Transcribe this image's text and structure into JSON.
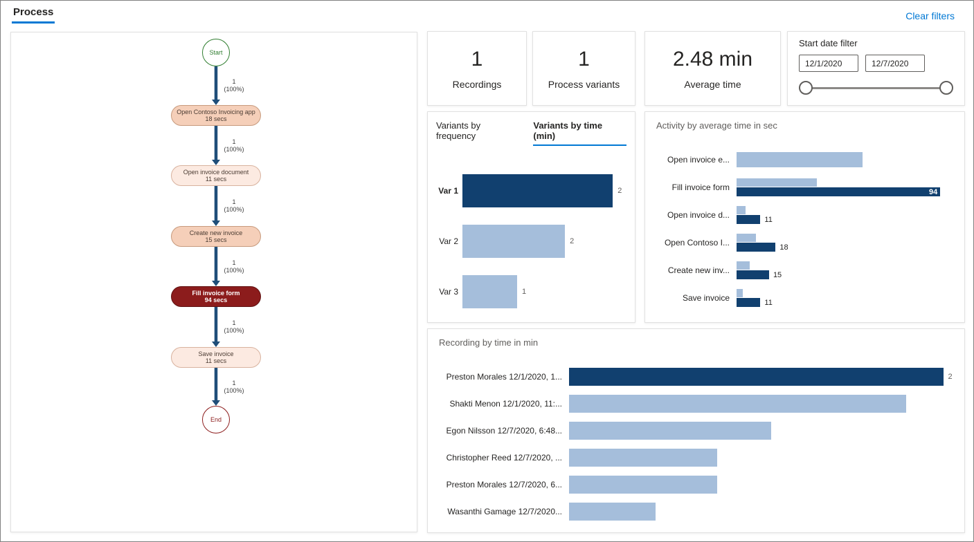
{
  "header": {
    "process_tab": "Process",
    "clear_filters": "Clear filters"
  },
  "colors": {
    "accent": "#0078d4",
    "dark_bar": "#11406f",
    "light_bar": "#a5bedb",
    "arrow": "#1f4e79",
    "node_high": "#8c1c1c",
    "node_mid": "#f5cfb9",
    "node_low": "#fceae1",
    "start_green": "#2f7d2f",
    "end_red": "#8c1c1c"
  },
  "flow": {
    "start": "Start",
    "end": "End",
    "edges": [
      {
        "count": "1",
        "pct": "(100%)"
      },
      {
        "count": "1",
        "pct": "(100%)"
      },
      {
        "count": "1",
        "pct": "(100%)"
      },
      {
        "count": "1",
        "pct": "(100%)"
      },
      {
        "count": "1",
        "pct": "(100%)"
      },
      {
        "count": "1",
        "pct": "(100%)"
      }
    ],
    "nodes": [
      {
        "title": "Open Contoso Invoicing app",
        "duration": "18 secs",
        "heat": "mid"
      },
      {
        "title": "Open invoice document",
        "duration": "11 secs",
        "heat": "low"
      },
      {
        "title": "Create new invoice",
        "duration": "15 secs",
        "heat": "mid"
      },
      {
        "title": "Fill invoice form",
        "duration": "94 secs",
        "heat": "high"
      },
      {
        "title": "Save invoice",
        "duration": "11 secs",
        "heat": "low"
      }
    ]
  },
  "kpis": [
    {
      "value": "1",
      "label": "Recordings"
    },
    {
      "value": "1",
      "label": "Process variants"
    },
    {
      "value": "2.48 min",
      "label": "Average time"
    }
  ],
  "date_filter": {
    "title": "Start date filter",
    "start_date": "12/1/2020",
    "end_date": "12/7/2020"
  },
  "variants_chart": {
    "tabs": [
      {
        "label": "Variants by frequency",
        "active": false
      },
      {
        "label": "Variants by time (min)",
        "active": true
      }
    ],
    "axis_max": 2.4,
    "bars": [
      {
        "category": "Var 1",
        "value": 2.2,
        "display": "2",
        "emphasis": true
      },
      {
        "category": "Var 2",
        "value": 1.5,
        "display": "2",
        "emphasis": false
      },
      {
        "category": "Var 3",
        "value": 0.8,
        "display": "1",
        "emphasis": false
      }
    ]
  },
  "activity_chart": {
    "title": "Activity by average time in sec",
    "axis_max": 100,
    "rows": [
      {
        "label": "Open invoice e...",
        "light": 58,
        "dark": null,
        "display": "",
        "label_inside": false
      },
      {
        "label": "Fill invoice form",
        "light": 37,
        "dark": 94,
        "display": "94",
        "label_inside": true
      },
      {
        "label": "Open invoice d...",
        "light": 4,
        "dark": 11,
        "display": "11",
        "label_inside": false
      },
      {
        "label": "Open Contoso I...",
        "light": 9,
        "dark": 18,
        "display": "18",
        "label_inside": false
      },
      {
        "label": "Create new inv...",
        "light": 6,
        "dark": 15,
        "display": "15",
        "label_inside": false
      },
      {
        "label": "Save invoice",
        "light": 3,
        "dark": 11,
        "display": "11",
        "label_inside": false
      }
    ]
  },
  "recording_chart": {
    "title": "Recording by time in min",
    "axis_max": 2.05,
    "rows": [
      {
        "label": "Preston Morales 12/1/2020, 1...",
        "value": 2.0,
        "display": "2",
        "emphasis": true
      },
      {
        "label": "Shakti Menon 12/1/2020, 11:...",
        "value": 1.8,
        "display": "",
        "emphasis": false
      },
      {
        "label": "Egon Nilsson 12/7/2020, 6:48...",
        "value": 1.08,
        "display": "",
        "emphasis": false
      },
      {
        "label": "Christopher Reed 12/7/2020, ...",
        "value": 0.79,
        "display": "",
        "emphasis": false
      },
      {
        "label": "Preston Morales 12/7/2020, 6...",
        "value": 0.79,
        "display": "",
        "emphasis": false
      },
      {
        "label": "Wasanthi Gamage 12/7/2020...",
        "value": 0.46,
        "display": "",
        "emphasis": false
      }
    ]
  },
  "chart_data": [
    {
      "type": "bar",
      "orientation": "horizontal",
      "title": "Variants by time (min)",
      "categories": [
        "Var 1",
        "Var 2",
        "Var 3"
      ],
      "values": [
        2.2,
        1.5,
        0.8
      ],
      "data_labels": [
        "2",
        "2",
        "1"
      ],
      "highlight_category": "Var 1",
      "xlim": [
        0,
        2.4
      ],
      "legend": false
    },
    {
      "type": "bar",
      "orientation": "horizontal",
      "title": "Activity by average time in sec",
      "categories": [
        "Open invoice e...",
        "Fill invoice form",
        "Open invoice d...",
        "Open Contoso I...",
        "Create new inv...",
        "Save invoice"
      ],
      "series": [
        {
          "name": "light",
          "values": [
            58,
            37,
            4,
            9,
            6,
            3
          ]
        },
        {
          "name": "dark",
          "values": [
            null,
            94,
            11,
            18,
            15,
            11
          ]
        }
      ],
      "data_labels": [
        "",
        "94",
        "11",
        "18",
        "15",
        "11"
      ],
      "xlim": [
        0,
        100
      ],
      "legend": false
    },
    {
      "type": "bar",
      "orientation": "horizontal",
      "title": "Recording by time in min",
      "categories": [
        "Preston Morales 12/1/2020, 1...",
        "Shakti Menon 12/1/2020, 11:...",
        "Egon Nilsson 12/7/2020, 6:48...",
        "Christopher Reed 12/7/2020, ...",
        "Preston Morales 12/7/2020, 6...",
        "Wasanthi Gamage 12/7/2020..."
      ],
      "values": [
        2.0,
        1.8,
        1.08,
        0.79,
        0.79,
        0.46
      ],
      "data_labels": [
        "2",
        "",
        "",
        "",
        "",
        ""
      ],
      "highlight_category": "Preston Morales 12/1/2020, 1...",
      "xlim": [
        0,
        2.05
      ],
      "legend": false
    }
  ]
}
